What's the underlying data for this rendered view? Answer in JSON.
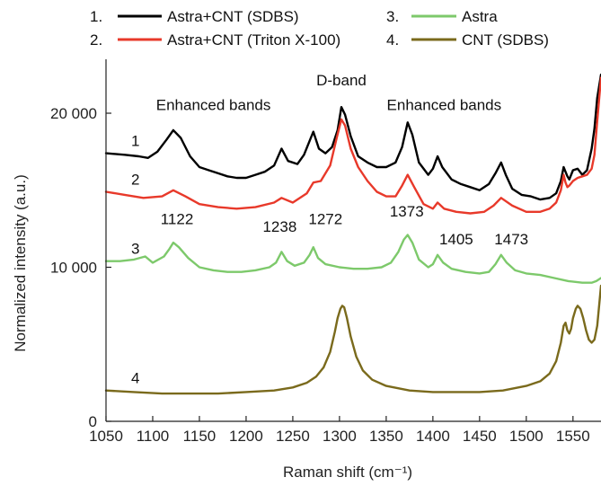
{
  "chart_data": {
    "type": "line",
    "xlabel": "Raman shift (cm⁻¹)",
    "ylabel": "Normalized intensity (a.u.)",
    "xlim": [
      1050,
      1580
    ],
    "ylim": [
      0,
      23500
    ],
    "x_ticks": [
      1050,
      1100,
      1150,
      1200,
      1250,
      1300,
      1350,
      1400,
      1450,
      1500,
      1550
    ],
    "y_ticks": [
      0,
      10000,
      20000
    ],
    "y_tick_labels": [
      "0",
      "10 000",
      "20 000"
    ],
    "grid": false,
    "legend_position": "top",
    "legend": [
      {
        "number": "1.",
        "name": "Astra+CNT (SDBS)",
        "color": "#000000"
      },
      {
        "number": "2.",
        "name": "Astra+CNT (Triton X-100)",
        "color": "#e8392a"
      },
      {
        "number": "3.",
        "name": "Astra",
        "color": "#7dc96b"
      },
      {
        "number": "4.",
        "name": "CNT (SDBS)",
        "color": "#7a6a1c"
      }
    ],
    "series": [
      {
        "name": "Astra+CNT (SDBS)",
        "label": "1",
        "color": "#000000",
        "x": [
          1050,
          1070,
          1085,
          1095,
          1105,
          1115,
          1122,
          1130,
          1140,
          1150,
          1160,
          1170,
          1180,
          1190,
          1200,
          1210,
          1220,
          1230,
          1238,
          1245,
          1255,
          1262,
          1268,
          1272,
          1278,
          1285,
          1292,
          1298,
          1302,
          1306,
          1312,
          1320,
          1330,
          1340,
          1350,
          1360,
          1367,
          1373,
          1378,
          1385,
          1395,
          1400,
          1405,
          1410,
          1420,
          1430,
          1440,
          1450,
          1460,
          1467,
          1473,
          1478,
          1485,
          1495,
          1505,
          1515,
          1525,
          1532,
          1537,
          1540,
          1542,
          1544,
          1546,
          1550,
          1555,
          1560,
          1565,
          1570,
          1573,
          1576,
          1580
        ],
        "values": [
          17400,
          17300,
          17200,
          17100,
          17500,
          18300,
          18900,
          18400,
          17200,
          16500,
          16300,
          16100,
          15900,
          15800,
          15800,
          16000,
          16200,
          16600,
          17700,
          16900,
          16700,
          17300,
          18200,
          18800,
          17700,
          17400,
          17800,
          18900,
          20400,
          19900,
          18500,
          17200,
          16800,
          16500,
          16500,
          16800,
          17800,
          19400,
          18600,
          16800,
          16000,
          16400,
          17200,
          16500,
          15700,
          15400,
          15200,
          15000,
          15400,
          16100,
          16800,
          16000,
          15100,
          14700,
          14600,
          14400,
          14500,
          14800,
          15600,
          16500,
          16200,
          15900,
          15700,
          16300,
          16400,
          16000,
          16300,
          17700,
          19000,
          21000,
          22500
        ]
      },
      {
        "name": "Astra+CNT (Triton X-100)",
        "label": "2",
        "color": "#e8392a",
        "x": [
          1050,
          1070,
          1090,
          1110,
          1122,
          1135,
          1150,
          1170,
          1190,
          1210,
          1230,
          1238,
          1250,
          1265,
          1272,
          1280,
          1290,
          1297,
          1302,
          1306,
          1312,
          1320,
          1330,
          1340,
          1350,
          1360,
          1367,
          1373,
          1380,
          1390,
          1400,
          1405,
          1412,
          1425,
          1440,
          1455,
          1465,
          1473,
          1485,
          1500,
          1515,
          1525,
          1532,
          1537,
          1540,
          1542,
          1544,
          1546,
          1550,
          1555,
          1560,
          1565,
          1570,
          1573,
          1576,
          1580
        ],
        "values": [
          14900,
          14700,
          14500,
          14600,
          15000,
          14600,
          14100,
          13900,
          13800,
          13900,
          14200,
          14500,
          14200,
          14800,
          15500,
          15600,
          16600,
          18400,
          19600,
          19200,
          17700,
          16500,
          15600,
          14900,
          14600,
          14600,
          15300,
          16000,
          15200,
          14100,
          13800,
          14200,
          13800,
          13600,
          13500,
          13600,
          14000,
          14500,
          14000,
          13600,
          13600,
          13800,
          14200,
          15000,
          16000,
          15500,
          15200,
          15300,
          15600,
          15800,
          15900,
          16000,
          16400,
          17300,
          19500,
          22300
        ]
      },
      {
        "name": "Astra",
        "label": "3",
        "color": "#7dc96b",
        "x": [
          1050,
          1065,
          1080,
          1092,
          1100,
          1112,
          1118,
          1122,
          1128,
          1138,
          1150,
          1165,
          1180,
          1195,
          1210,
          1225,
          1232,
          1238,
          1244,
          1252,
          1262,
          1268,
          1272,
          1277,
          1285,
          1300,
          1315,
          1330,
          1345,
          1355,
          1363,
          1369,
          1373,
          1378,
          1385,
          1395,
          1400,
          1405,
          1411,
          1420,
          1435,
          1450,
          1460,
          1467,
          1473,
          1479,
          1488,
          1500,
          1515,
          1530,
          1545,
          1560,
          1570,
          1575,
          1580
        ],
        "values": [
          10400,
          10400,
          10500,
          10700,
          10300,
          10700,
          11200,
          11600,
          11300,
          10600,
          10000,
          9800,
          9700,
          9700,
          9800,
          10000,
          10300,
          11000,
          10400,
          10100,
          10300,
          10800,
          11300,
          10600,
          10200,
          10000,
          9900,
          9900,
          10000,
          10300,
          11000,
          11800,
          12100,
          11600,
          10500,
          10000,
          10200,
          10800,
          10300,
          9900,
          9700,
          9600,
          9700,
          10200,
          10800,
          10300,
          9800,
          9600,
          9500,
          9300,
          9100,
          9000,
          9000,
          9100,
          9300
        ]
      },
      {
        "name": "CNT (SDBS)",
        "label": "4",
        "color": "#7a6a1c",
        "x": [
          1050,
          1080,
          1110,
          1140,
          1170,
          1200,
          1230,
          1250,
          1265,
          1275,
          1283,
          1290,
          1295,
          1298,
          1301,
          1303,
          1305,
          1308,
          1312,
          1318,
          1325,
          1335,
          1350,
          1375,
          1400,
          1425,
          1450,
          1475,
          1500,
          1515,
          1525,
          1532,
          1537,
          1540,
          1542,
          1544,
          1546,
          1548,
          1550,
          1553,
          1555,
          1558,
          1561,
          1564,
          1567,
          1570,
          1573,
          1576,
          1580
        ],
        "values": [
          2000,
          1900,
          1800,
          1800,
          1800,
          1900,
          2000,
          2200,
          2500,
          2900,
          3500,
          4500,
          5800,
          6700,
          7300,
          7500,
          7400,
          6700,
          5500,
          4200,
          3300,
          2700,
          2300,
          2000,
          1900,
          1900,
          1900,
          2000,
          2300,
          2600,
          3100,
          3900,
          5100,
          6200,
          6400,
          5900,
          5700,
          6000,
          6700,
          7300,
          7500,
          7300,
          6700,
          5900,
          5300,
          5100,
          5300,
          6200,
          8800
        ]
      }
    ],
    "annotations": [
      {
        "text": "D-band",
        "x": 1302,
        "y": 21800
      },
      {
        "text": "Enhanced bands",
        "x": 1165,
        "y": 20200
      },
      {
        "text": "Enhanced bands",
        "x": 1412,
        "y": 20200
      },
      {
        "text": "1122",
        "x": 1126,
        "y": 12800
      },
      {
        "text": "1238",
        "x": 1236,
        "y": 12300
      },
      {
        "text": "1272",
        "x": 1285,
        "y": 12800
      },
      {
        "text": "1373",
        "x": 1372,
        "y": 13300
      },
      {
        "text": "1405",
        "x": 1425,
        "y": 11500
      },
      {
        "text": "1473",
        "x": 1484,
        "y": 11500
      }
    ]
  }
}
